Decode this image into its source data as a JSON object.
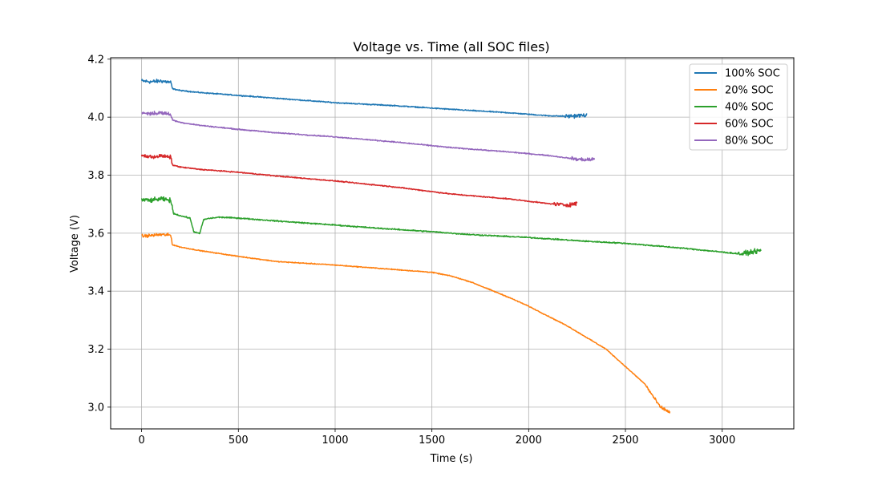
{
  "chart_data": {
    "type": "line",
    "title": "Voltage vs. Time (all SOC files)",
    "xlabel": "Time (s)",
    "ylabel": "Voltage (V)",
    "xlim": [
      -160,
      3370
    ],
    "ylim": [
      2.925,
      4.205
    ],
    "xticks": [
      0,
      500,
      1000,
      1500,
      2000,
      2500,
      3000
    ],
    "yticks": [
      3.0,
      3.2,
      3.4,
      3.6,
      3.8,
      4.0,
      4.2
    ],
    "xtick_labels": [
      "0",
      "500",
      "1000",
      "1500",
      "2000",
      "2500",
      "3000"
    ],
    "ytick_labels": [
      "3.0",
      "3.2",
      "3.4",
      "3.6",
      "3.8",
      "4.0",
      "4.2"
    ],
    "grid": true,
    "legend_position": "top-right",
    "series": [
      {
        "name": "100% SOC",
        "color": "#1f77b4",
        "x": [
          0,
          50,
          100,
          150,
          160,
          200,
          300,
          400,
          500,
          700,
          1000,
          1300,
          1600,
          1900,
          2100,
          2200,
          2300
        ],
        "y": [
          4.125,
          4.122,
          4.125,
          4.12,
          4.098,
          4.092,
          4.085,
          4.08,
          4.075,
          4.065,
          4.05,
          4.04,
          4.027,
          4.015,
          4.005,
          4.003,
          4.007
        ],
        "noise": 0.006
      },
      {
        "name": "20% SOC",
        "color": "#ff7f0e",
        "x": [
          0,
          50,
          100,
          150,
          160,
          200,
          300,
          400,
          500,
          700,
          1000,
          1300,
          1500,
          1600,
          1700,
          1800,
          1900,
          2000,
          2200,
          2400,
          2600,
          2680,
          2700,
          2730
        ],
        "y": [
          3.59,
          3.592,
          3.595,
          3.593,
          3.56,
          3.552,
          3.54,
          3.53,
          3.52,
          3.502,
          3.49,
          3.475,
          3.465,
          3.452,
          3.432,
          3.405,
          3.378,
          3.348,
          3.28,
          3.2,
          3.08,
          3.0,
          2.993,
          2.982
        ],
        "noise": 0.005
      },
      {
        "name": "40% SOC",
        "color": "#2ca02c",
        "x": [
          0,
          50,
          100,
          150,
          165,
          200,
          250,
          270,
          300,
          320,
          340,
          400,
          500,
          700,
          1000,
          1200,
          1500,
          1700,
          2000,
          2300,
          2500,
          2800,
          3100,
          3150,
          3200
        ],
        "y": [
          3.715,
          3.713,
          3.718,
          3.713,
          3.668,
          3.66,
          3.652,
          3.605,
          3.598,
          3.646,
          3.65,
          3.655,
          3.652,
          3.642,
          3.628,
          3.618,
          3.605,
          3.595,
          3.585,
          3.572,
          3.565,
          3.548,
          3.528,
          3.535,
          3.54
        ],
        "noise": 0.007
      },
      {
        "name": "60% SOC",
        "color": "#d62728",
        "x": [
          0,
          50,
          100,
          150,
          160,
          200,
          300,
          500,
          700,
          1000,
          1300,
          1600,
          1900,
          2100,
          2200,
          2250
        ],
        "y": [
          3.868,
          3.863,
          3.866,
          3.862,
          3.835,
          3.828,
          3.82,
          3.81,
          3.797,
          3.78,
          3.76,
          3.735,
          3.718,
          3.702,
          3.697,
          3.703
        ],
        "noise": 0.006
      },
      {
        "name": "80% SOC",
        "color": "#9467bd",
        "x": [
          0,
          50,
          100,
          150,
          160,
          200,
          300,
          500,
          700,
          1000,
          1300,
          1600,
          1900,
          2100,
          2250,
          2300,
          2340
        ],
        "y": [
          4.015,
          4.012,
          4.015,
          4.01,
          3.99,
          3.982,
          3.972,
          3.958,
          3.946,
          3.932,
          3.915,
          3.895,
          3.88,
          3.868,
          3.855,
          3.853,
          3.855
        ],
        "noise": 0.006
      }
    ]
  }
}
